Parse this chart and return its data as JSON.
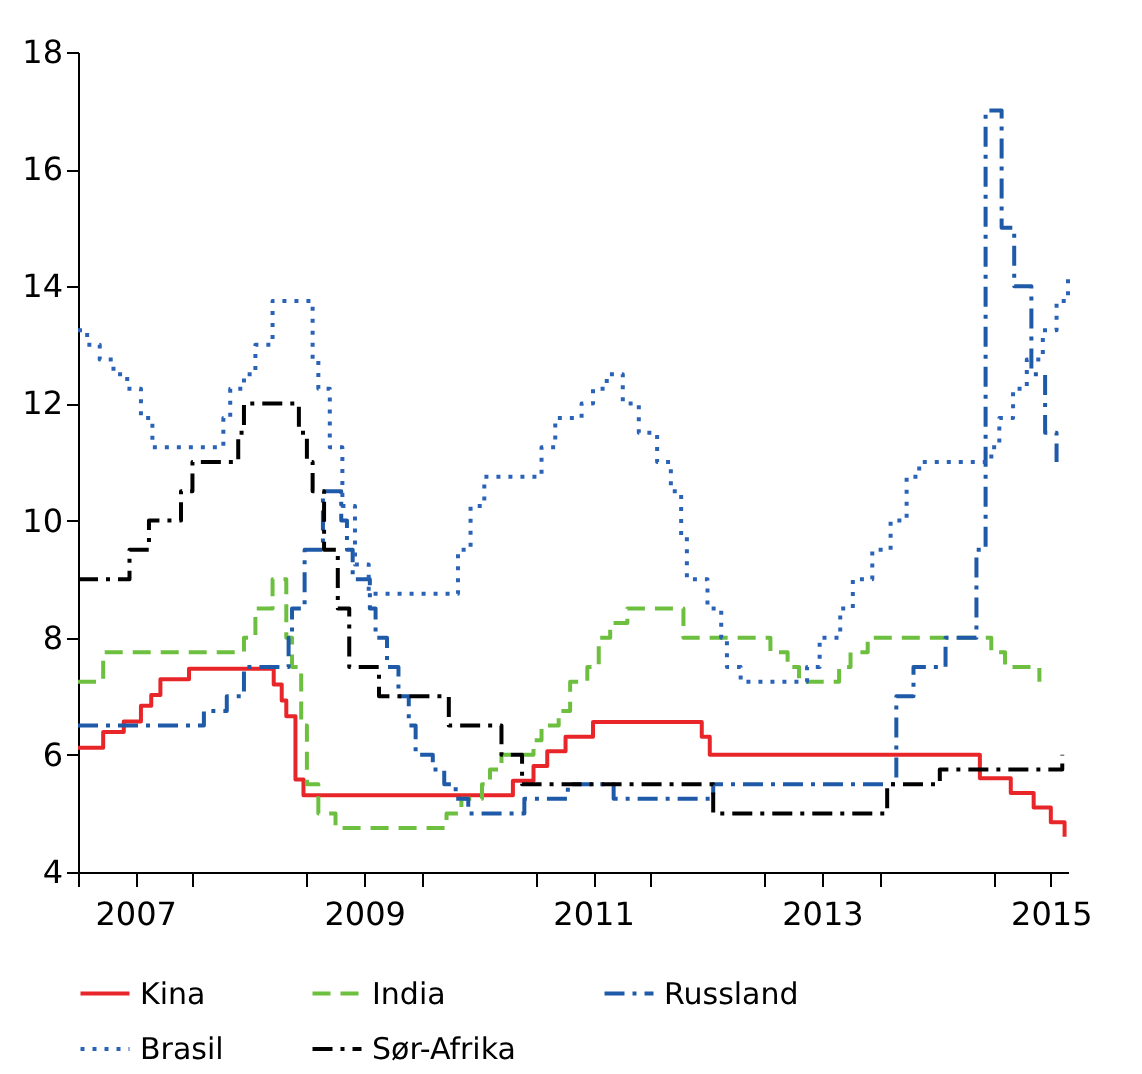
{
  "chart_data": {
    "type": "step",
    "ylim": [
      4,
      18
    ],
    "yticks": [
      4,
      6,
      8,
      10,
      12,
      14,
      16,
      18
    ],
    "xlim": [
      2007,
      2015.65
    ],
    "xticks": [
      {
        "value": 2007,
        "label": null
      },
      {
        "value": 2007.5,
        "label": "2007"
      },
      {
        "value": 2008,
        "label": null
      },
      {
        "value": 2009,
        "label": null
      },
      {
        "value": 2009.5,
        "label": "2009"
      },
      {
        "value": 2010,
        "label": null
      },
      {
        "value": 2011,
        "label": null
      },
      {
        "value": 2011.5,
        "label": "2011"
      },
      {
        "value": 2012,
        "label": null
      },
      {
        "value": 2013,
        "label": null
      },
      {
        "value": 2013.5,
        "label": "2013"
      },
      {
        "value": 2014,
        "label": null
      },
      {
        "value": 2015,
        "label": null
      },
      {
        "value": 2015.5,
        "label": "2015"
      }
    ],
    "grid": false,
    "legend": "bottom",
    "marker": "none",
    "series": [
      {
        "name": "Kina",
        "color": "#e8262a",
        "line_style": "solid",
        "x": [
          2007.0,
          2007.22,
          2007.4,
          2007.55,
          2007.64,
          2007.72,
          2007.97,
          2008.71,
          2008.78,
          2008.82,
          2008.9,
          2008.97,
          2010.8,
          2010.98,
          2011.1,
          2011.26,
          2011.5,
          2012.45,
          2012.52,
          2014.88,
          2015.15,
          2015.35,
          2015.5,
          2015.62
        ],
        "values": [
          6.12,
          6.39,
          6.57,
          6.84,
          7.02,
          7.29,
          7.47,
          7.2,
          6.93,
          6.66,
          5.58,
          5.31,
          5.56,
          5.81,
          6.06,
          6.31,
          6.56,
          6.31,
          6.0,
          5.6,
          5.35,
          5.1,
          4.85,
          4.6
        ]
      },
      {
        "name": "India",
        "color": "#6cbf3f",
        "line_style": "dashed",
        "x": [
          2007.0,
          2007.22,
          2008.45,
          2008.55,
          2008.7,
          2008.82,
          2008.87,
          2008.95,
          2009.0,
          2009.1,
          2009.25,
          2010.22,
          2010.35,
          2010.53,
          2010.6,
          2010.7,
          2010.98,
          2011.05,
          2011.2,
          2011.3,
          2011.45,
          2011.55,
          2011.65,
          2011.8,
          2012.29,
          2013.05,
          2013.2,
          2013.3,
          2013.65,
          2013.75,
          2013.9,
          2014.98,
          2015.1,
          2015.4
        ],
        "values": [
          7.25,
          7.75,
          8.0,
          8.5,
          9.0,
          8.0,
          7.5,
          6.5,
          5.5,
          5.0,
          4.75,
          5.0,
          5.25,
          5.5,
          5.75,
          6.0,
          6.25,
          6.5,
          6.75,
          7.25,
          7.5,
          8.0,
          8.25,
          8.5,
          8.0,
          7.75,
          7.5,
          7.25,
          7.5,
          7.75,
          8.0,
          7.75,
          7.5,
          7.25
        ]
      },
      {
        "name": "Russland",
        "color": "#1f5aa8",
        "line_style": "dashdot",
        "x": [
          2007.0,
          2008.1,
          2008.3,
          2008.45,
          2008.84,
          2008.87,
          2008.98,
          2009.14,
          2009.3,
          2009.35,
          2009.4,
          2009.55,
          2009.6,
          2009.7,
          2009.8,
          2009.89,
          2009.95,
          2010.1,
          2010.2,
          2010.3,
          2010.41,
          2010.9,
          2011.28,
          2011.68,
          2012.55,
          2014.15,
          2014.3,
          2014.58,
          2014.85,
          2014.93,
          2015.07,
          2015.18,
          2015.33,
          2015.45,
          2015.55
        ],
        "values": [
          6.5,
          6.75,
          7.0,
          7.5,
          8.0,
          8.5,
          9.5,
          10.5,
          10.0,
          9.5,
          9.0,
          8.5,
          8.0,
          7.5,
          7.0,
          6.5,
          6.0,
          5.75,
          5.5,
          5.25,
          5.0,
          5.25,
          5.5,
          5.25,
          5.5,
          7.0,
          7.5,
          8.0,
          9.5,
          17.0,
          15.0,
          14.0,
          12.5,
          11.5,
          11.0
        ]
      },
      {
        "name": "Brasil",
        "color": "#2a62b8",
        "line_style": "dotted",
        "x": [
          2007.0,
          2007.08,
          2007.19,
          2007.31,
          2007.43,
          2007.55,
          2007.65,
          2008.27,
          2008.33,
          2008.45,
          2008.55,
          2008.7,
          2009.05,
          2009.1,
          2009.2,
          2009.31,
          2009.42,
          2009.54,
          2010.32,
          2010.43,
          2010.55,
          2011.05,
          2011.17,
          2011.4,
          2011.5,
          2011.62,
          2011.76,
          2011.9,
          2012.06,
          2012.18,
          2012.27,
          2012.32,
          2012.5,
          2012.62,
          2012.67,
          2012.79,
          2013.37,
          2013.48,
          2013.66,
          2013.77,
          2013.94,
          2014.1,
          2014.24,
          2014.35,
          2014.98,
          2015.05,
          2015.17,
          2015.29,
          2015.43,
          2015.55,
          2015.65
        ],
        "values": [
          13.25,
          13.0,
          12.75,
          12.5,
          12.25,
          11.75,
          11.25,
          11.75,
          12.25,
          12.5,
          13.0,
          13.75,
          12.75,
          12.25,
          11.25,
          10.25,
          9.25,
          8.75,
          9.5,
          10.25,
          10.75,
          11.25,
          11.75,
          12.0,
          12.25,
          12.5,
          12.0,
          11.5,
          11.0,
          10.5,
          9.75,
          9.0,
          8.5,
          8.0,
          7.5,
          7.25,
          7.5,
          8.0,
          8.5,
          9.0,
          9.5,
          10.0,
          10.75,
          11.0,
          11.25,
          11.75,
          12.25,
          12.75,
          13.25,
          13.75,
          14.25
        ]
      },
      {
        "name": "Sør-Afrika",
        "color": "#000000",
        "line_style": "dashdot",
        "x": [
          2007.0,
          2007.45,
          2007.62,
          2007.9,
          2008.0,
          2008.4,
          2008.45,
          2008.93,
          2009.0,
          2009.05,
          2009.15,
          2009.27,
          2009.37,
          2009.45,
          2009.63,
          2010.24,
          2010.7,
          2010.88,
          2012.55,
          2014.07,
          2014.53,
          2015.6
        ],
        "values": [
          9.0,
          9.5,
          10.0,
          10.5,
          11.0,
          11.5,
          12.0,
          11.5,
          11.0,
          10.5,
          9.5,
          8.5,
          7.5,
          7.5,
          7.0,
          6.5,
          6.0,
          5.5,
          5.0,
          5.5,
          5.75,
          6.0
        ]
      }
    ]
  }
}
